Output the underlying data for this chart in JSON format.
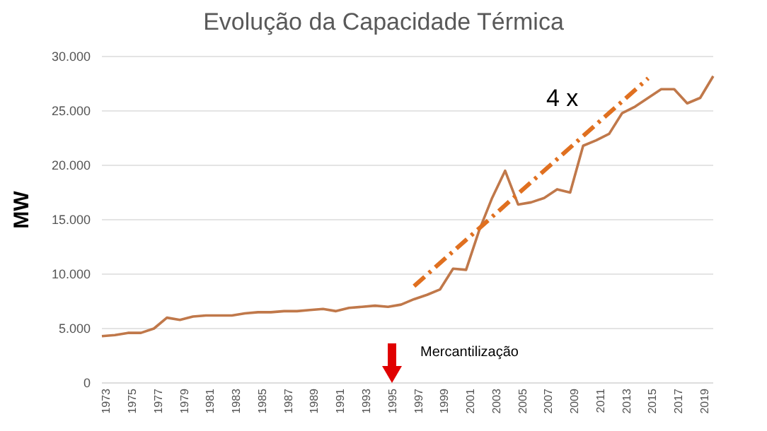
{
  "chart_data": {
    "type": "line",
    "title": "Evolução da Capacidade Térmica",
    "ylabel": "MW",
    "categories": [
      "1973",
      null,
      "1975",
      null,
      "1977",
      null,
      "1979",
      null,
      "1981",
      null,
      "1983",
      null,
      "1985",
      null,
      "1987",
      null,
      "1989",
      null,
      "1991",
      null,
      "1993",
      null,
      "1995",
      null,
      "1997",
      null,
      "1999",
      null,
      "2001",
      null,
      "2003",
      null,
      "2005",
      null,
      "2007",
      null,
      "2009",
      null,
      "2011",
      null,
      "2013",
      null,
      "2015",
      null,
      "2017",
      null,
      "2019",
      null
    ],
    "series": [
      {
        "color": "#c0784a",
        "values": [
          4300,
          4400,
          4600,
          4600,
          5000,
          6000,
          5800,
          6100,
          6200,
          6200,
          6200,
          6400,
          6500,
          6500,
          6600,
          6600,
          6700,
          6800,
          6600,
          6900,
          7000,
          7100,
          7000,
          7200,
          7700,
          8100,
          8600,
          10500,
          10400,
          14000,
          17000,
          19500,
          16400,
          16600,
          17000,
          17800,
          17500,
          21800,
          22300,
          22900,
          24800,
          25400,
          26200,
          27000,
          27000,
          25700,
          26200,
          28200
        ]
      },
      {
        "type": "line",
        "color": "#e07020",
        "line_style": "dashed",
        "values": [
          null,
          null,
          null,
          null,
          null,
          null,
          null,
          null,
          null,
          null,
          null,
          null,
          null,
          null,
          null,
          null,
          null,
          null,
          null,
          null,
          null,
          null,
          null,
          null,
          8900,
          null,
          null,
          null,
          null,
          null,
          null,
          null,
          null,
          null,
          null,
          null,
          null,
          null,
          null,
          null,
          null,
          null,
          28000,
          null,
          null,
          null,
          null,
          null
        ]
      }
    ],
    "ylim": [
      0,
      30000
    ],
    "yticks": [
      {
        "value": 0,
        "label": "0"
      },
      {
        "value": 5000,
        "label": "5.000"
      },
      {
        "value": 10000,
        "label": "10.000"
      },
      {
        "value": 15000,
        "label": "15.000"
      },
      {
        "value": 20000,
        "label": "20.000"
      },
      {
        "value": 25000,
        "label": "25.000"
      },
      {
        "value": 30000,
        "label": "30.000"
      }
    ],
    "grid": "y",
    "legend": false,
    "marker": "none",
    "line_style": "solid",
    "annotations": [
      "4 x",
      "Mercantilização"
    ]
  }
}
